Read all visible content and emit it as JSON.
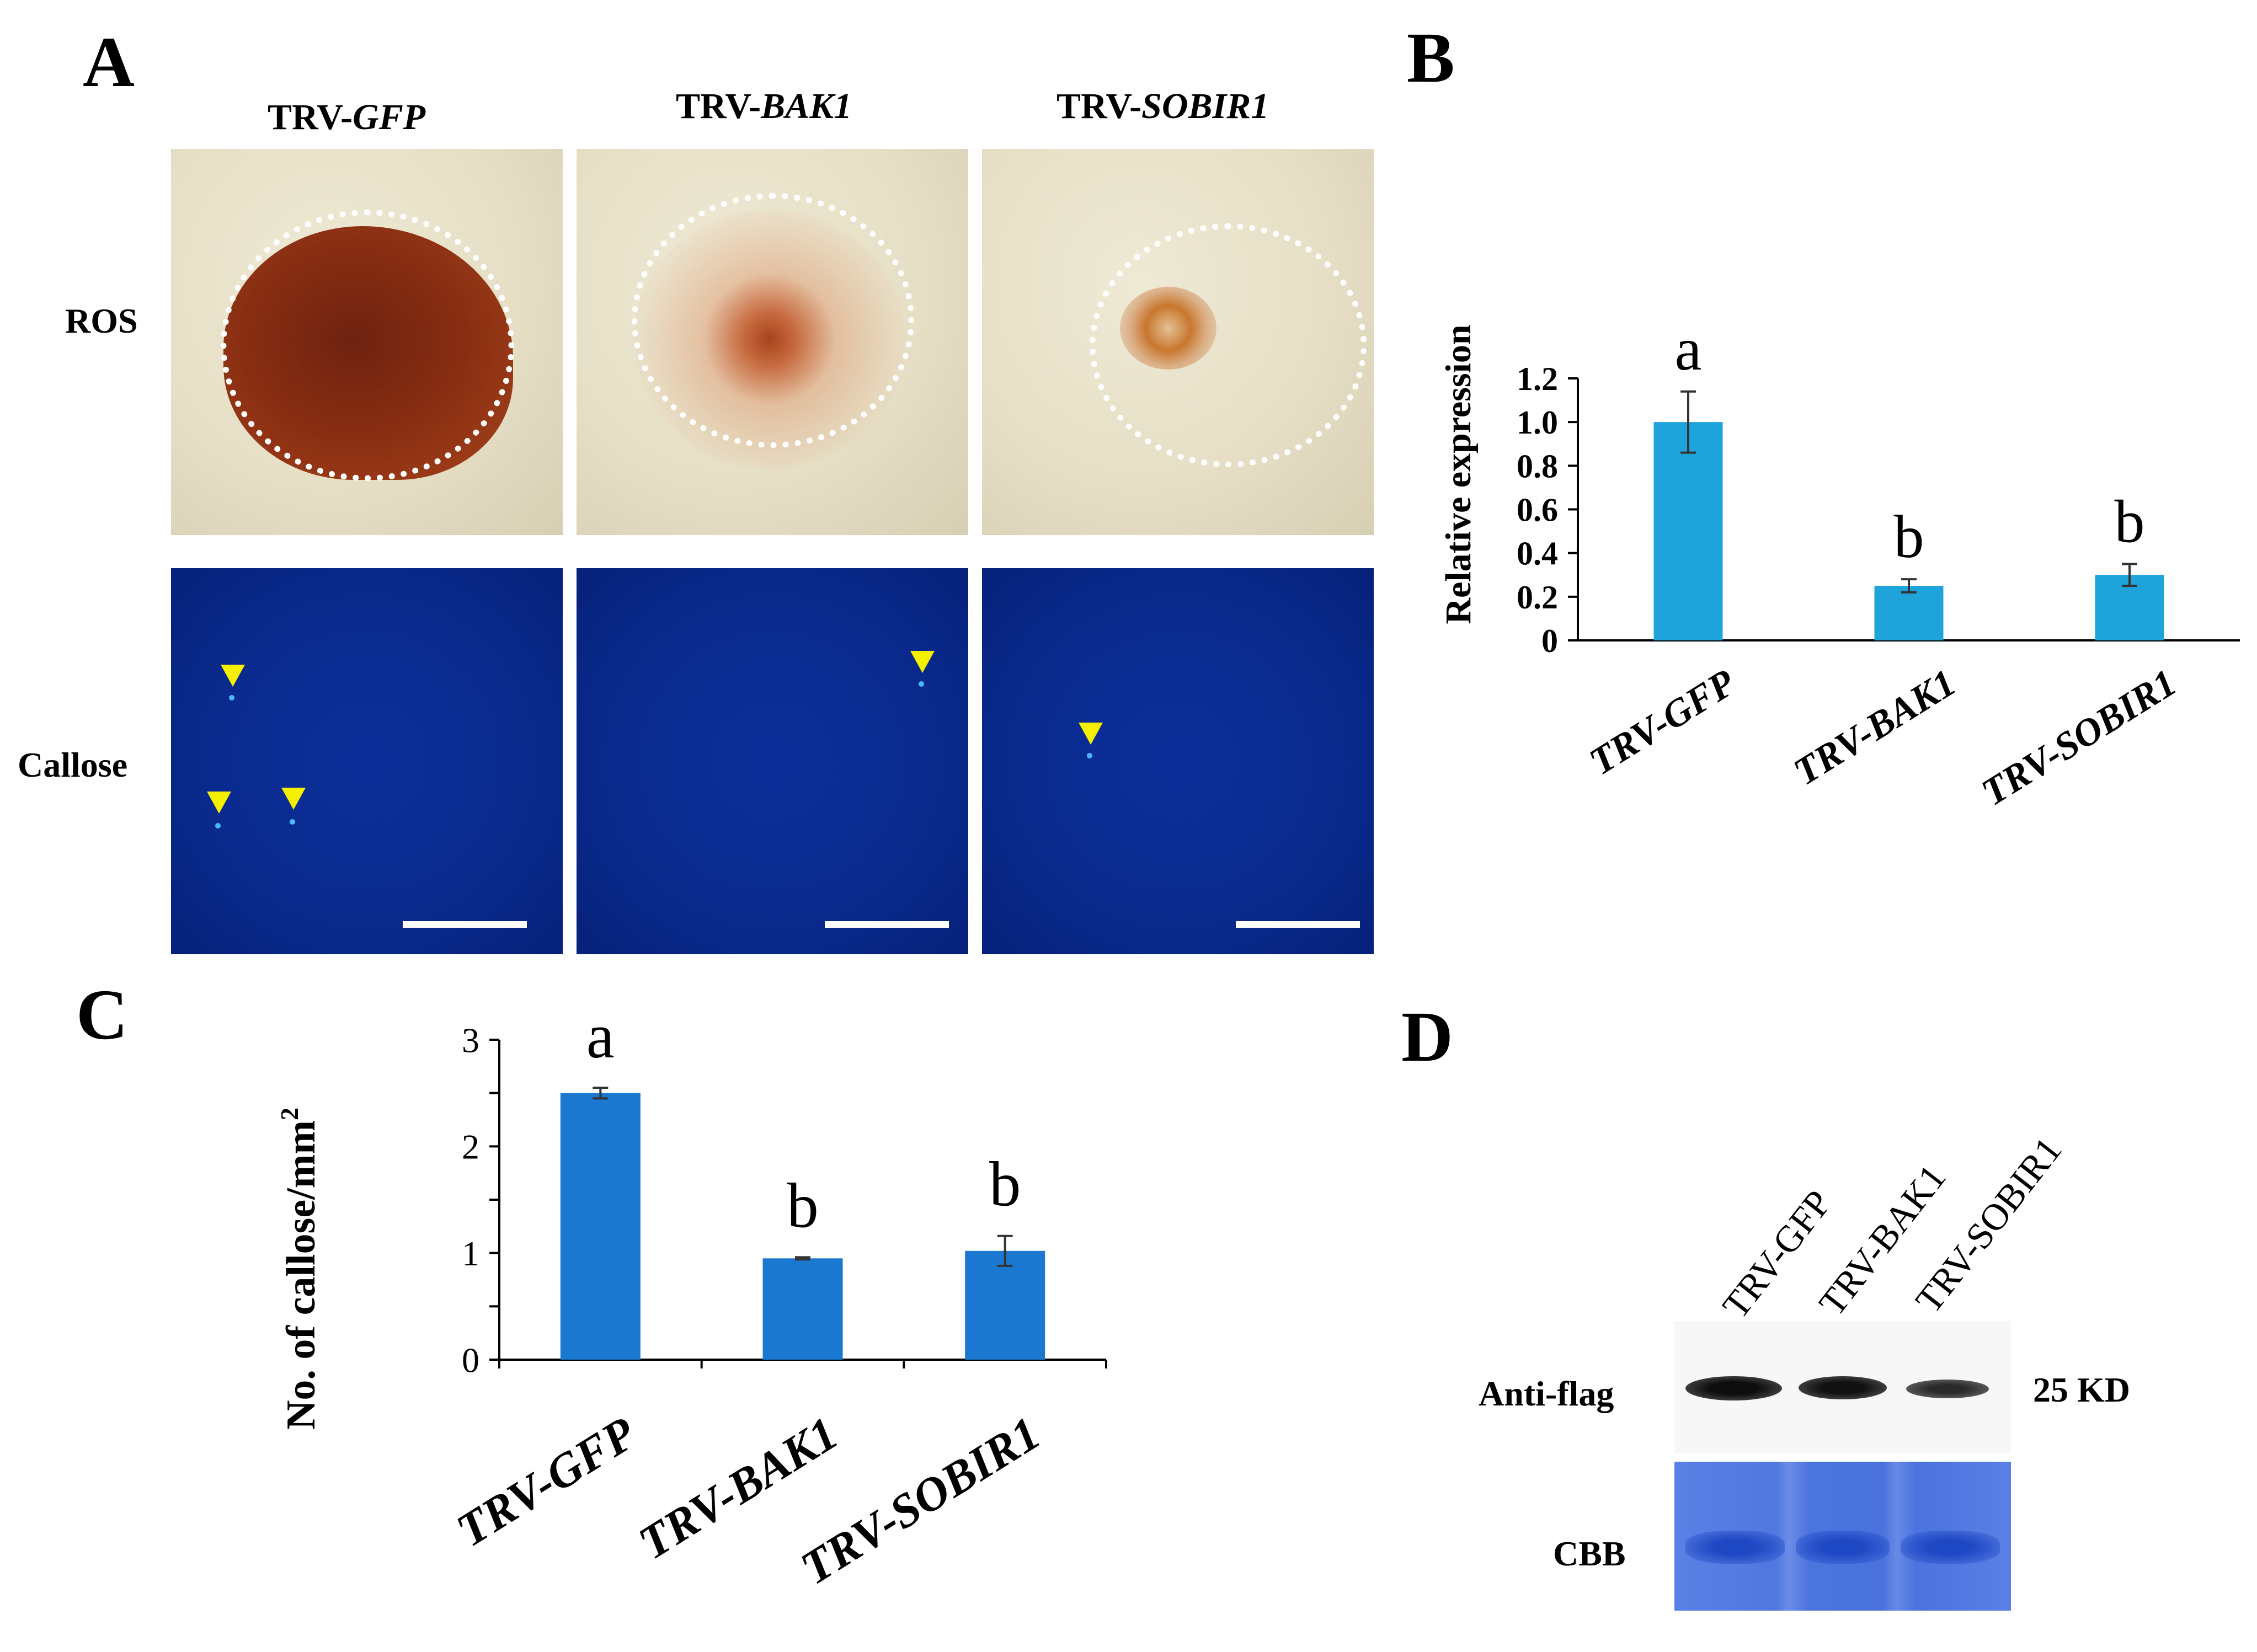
{
  "panelA": {
    "letter": "A",
    "columns": [
      {
        "prefix": "TRV-",
        "gene": "GFP"
      },
      {
        "prefix": "TRV-",
        "gene": "BAK1"
      },
      {
        "prefix": "TRV-",
        "gene": "SOBIR1"
      }
    ],
    "rows": [
      "ROS",
      "Callose"
    ]
  },
  "panelB": {
    "letter": "B",
    "chart_data": {
      "type": "bar",
      "categories": [
        "TRV-GFP",
        "TRV-BAK1",
        "TRV-SOBIR1"
      ],
      "values": [
        1.0,
        0.25,
        0.3
      ],
      "errors": [
        0.14,
        0.03,
        0.05
      ],
      "letters": [
        "a",
        "b",
        "b"
      ],
      "ylabel": "Relative expression",
      "ylim": [
        0,
        1.2
      ],
      "yticks": [
        "0",
        "0.2",
        "0.4",
        "0.6",
        "0.8",
        "1.0",
        "1.2"
      ],
      "color": "#1ea3db"
    }
  },
  "panelC": {
    "letter": "C",
    "chart_data": {
      "type": "bar",
      "categories": [
        "TRV-GFP",
        "TRV-BAK1",
        "TRV-SOBIR1"
      ],
      "values": [
        2.5,
        0.95,
        1.02
      ],
      "errors": [
        0.05,
        0.01,
        0.14
      ],
      "letters": [
        "a",
        "b",
        "b"
      ],
      "ylabel": "No. of callose/mm",
      "ylabel_sup": "2",
      "ylim": [
        0,
        3
      ],
      "yticks": [
        "0",
        "1",
        "2",
        "3"
      ],
      "color": "#1b78d0"
    }
  },
  "panelD": {
    "letter": "D",
    "lanes": [
      "TRV-GFP",
      "TRV-BAK1",
      "TRV-SOBIR1"
    ],
    "labels": {
      "antiflag": "Anti-flag",
      "cbb": "CBB",
      "size": "25 KD"
    }
  }
}
